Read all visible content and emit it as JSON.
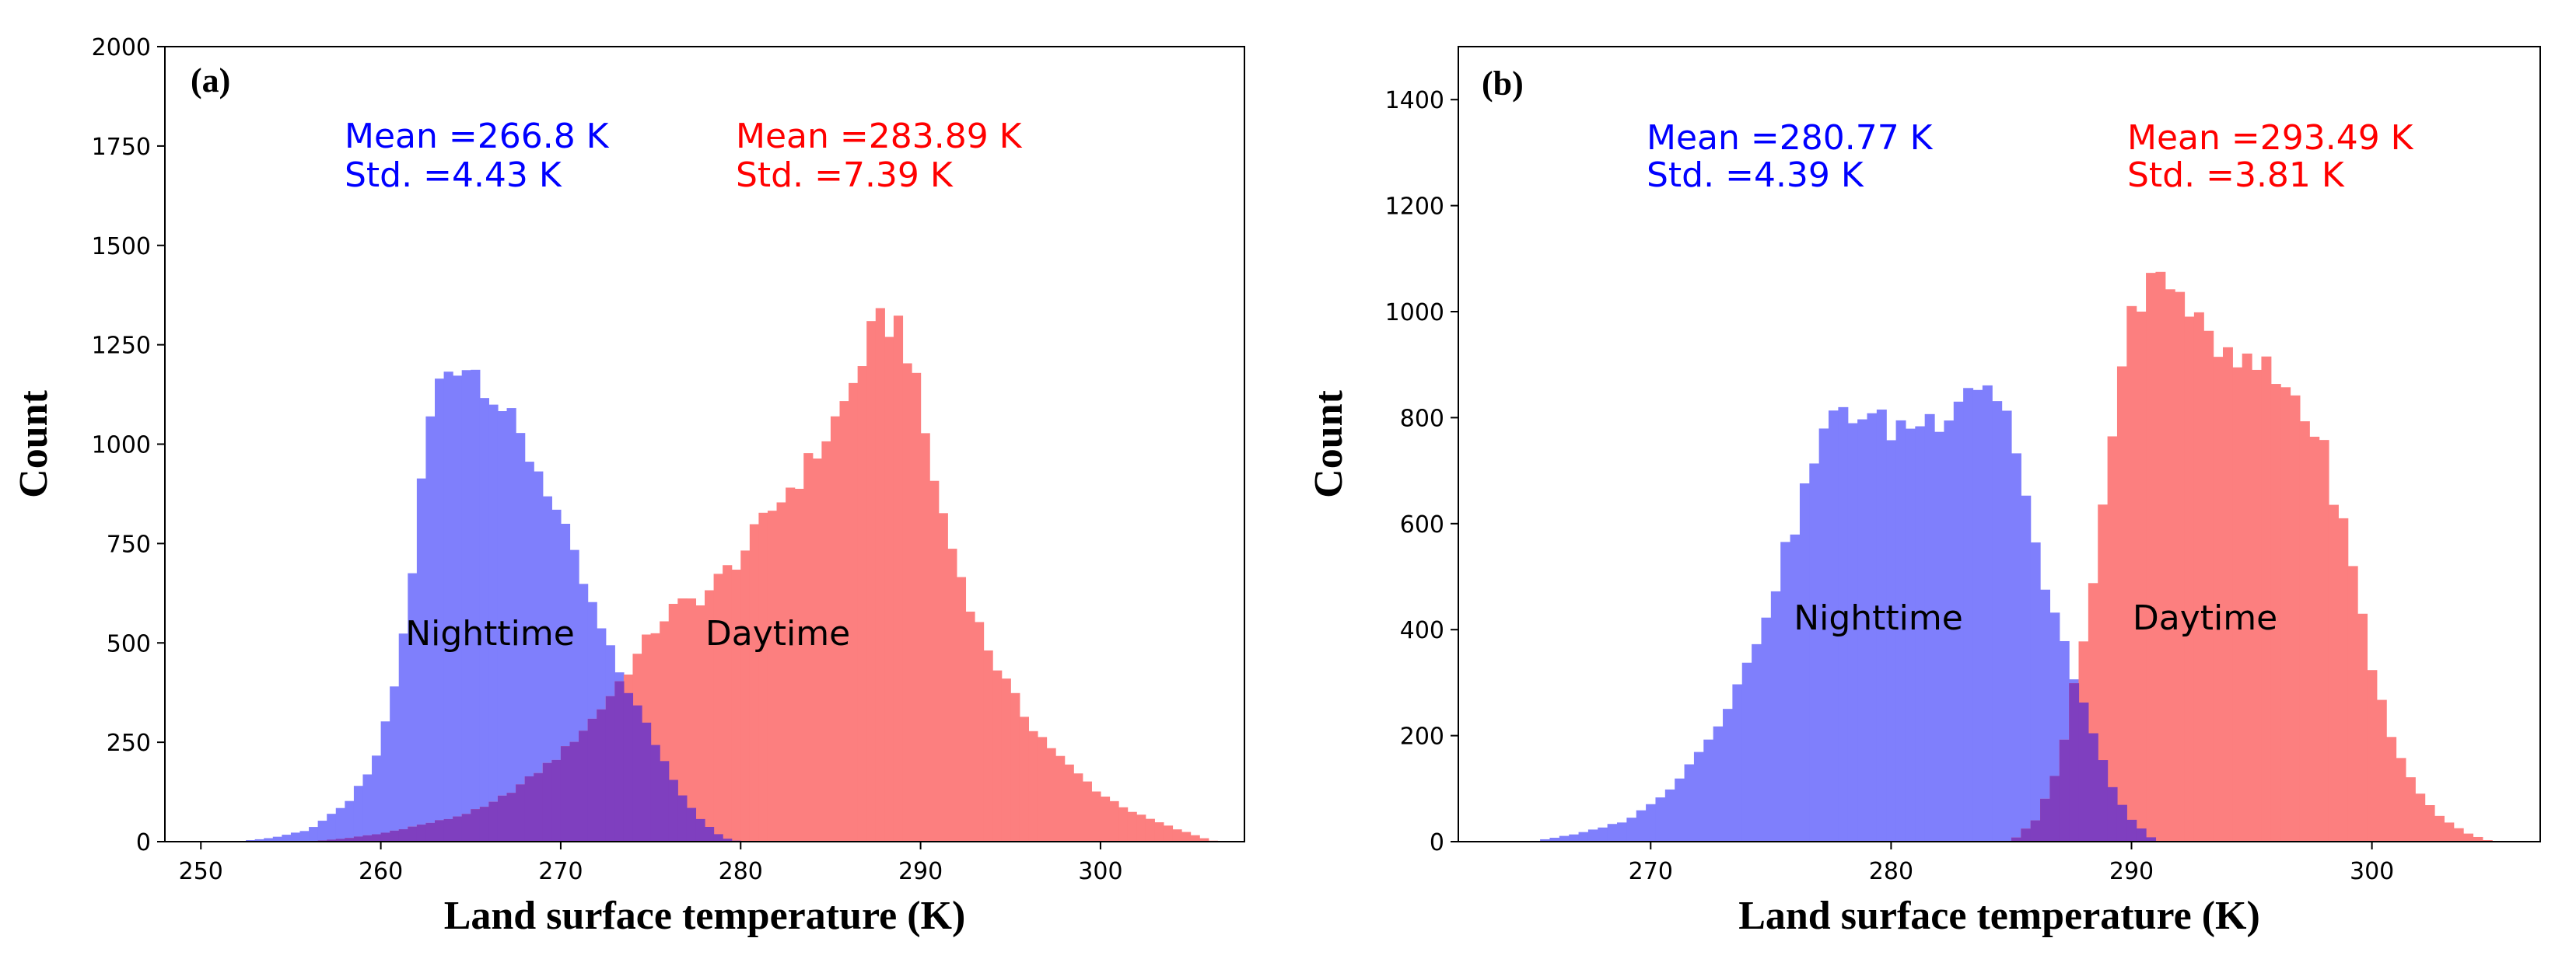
{
  "colors": {
    "nighttime": "#7f7ffc",
    "daytime": "#fc7f7f",
    "overlap": "#7f3fbf",
    "night_text": "#0000ff",
    "day_text": "#ff0000"
  },
  "chart_data": [
    {
      "type": "histogram",
      "panel_label": "(a)",
      "xlabel": "Land surface temperature (K)",
      "ylabel": "Count",
      "xlim": [
        248,
        308
      ],
      "ylim": [
        0,
        2000
      ],
      "xticks": [
        250,
        260,
        270,
        280,
        290,
        300
      ],
      "xtick_labels": [
        "250",
        "260",
        "270",
        "280",
        "290",
        "300"
      ],
      "yticks": [
        0,
        250,
        500,
        750,
        1000,
        1250,
        1500,
        1750,
        2000
      ],
      "ytick_labels": [
        "0",
        "250",
        "500",
        "750",
        "1000",
        "1250",
        "1500",
        "1750",
        "2000"
      ],
      "bin_width": 0.5,
      "series": [
        {
          "name": "Nighttime",
          "stats": {
            "mean": "Mean =266.8 K",
            "std": "Std. =4.43 K"
          },
          "profile": [
            [
              252,
              0
            ],
            [
              254,
              10
            ],
            [
              256,
              30
            ],
            [
              258,
              90
            ],
            [
              259.5,
              180
            ],
            [
              260.5,
              330
            ],
            [
              261.5,
              580
            ],
            [
              262.5,
              1000
            ],
            [
              263,
              1130
            ],
            [
              264,
              1210
            ],
            [
              265,
              1200
            ],
            [
              266,
              1150
            ],
            [
              267,
              1070
            ],
            [
              268,
              990
            ],
            [
              269,
              920
            ],
            [
              270,
              800
            ],
            [
              271,
              680
            ],
            [
              272,
              560
            ],
            [
              273,
              450
            ],
            [
              274,
              360
            ],
            [
              275,
              270
            ],
            [
              276,
              180
            ],
            [
              277,
              100
            ],
            [
              278,
              45
            ],
            [
              279,
              10
            ],
            [
              280,
              0
            ]
          ]
        },
        {
          "name": "Daytime",
          "stats": {
            "mean": "Mean =283.89 K",
            "std": "Std. =7.39 K"
          },
          "profile": [
            [
              256,
              0
            ],
            [
              258,
              8
            ],
            [
              260,
              20
            ],
            [
              262,
              40
            ],
            [
              264,
              60
            ],
            [
              266,
              90
            ],
            [
              268,
              150
            ],
            [
              270,
              220
            ],
            [
              272,
              320
            ],
            [
              274,
              450
            ],
            [
              275,
              520
            ],
            [
              276,
              580
            ],
            [
              278,
              620
            ],
            [
              280,
              720
            ],
            [
              282,
              850
            ],
            [
              284,
              960
            ],
            [
              286,
              1120
            ],
            [
              287,
              1250
            ],
            [
              288,
              1310
            ],
            [
              289,
              1300
            ],
            [
              290,
              1080
            ],
            [
              291,
              860
            ],
            [
              292,
              700
            ],
            [
              293,
              570
            ],
            [
              294,
              460
            ],
            [
              295,
              380
            ],
            [
              296,
              300
            ],
            [
              298,
              200
            ],
            [
              300,
              120
            ],
            [
              302,
              70
            ],
            [
              304,
              35
            ],
            [
              306,
              5
            ],
            [
              306.5,
              0
            ]
          ]
        }
      ],
      "annotations": [
        "Nighttime",
        "Daytime"
      ]
    },
    {
      "type": "histogram",
      "panel_label": "(b)",
      "xlabel": "Land surface temperature (K)",
      "ylabel": "Count",
      "xlim": [
        262,
        307
      ],
      "ylim": [
        0,
        1500
      ],
      "xticks": [
        270,
        280,
        290,
        300
      ],
      "xtick_labels": [
        "270",
        "280",
        "290",
        "300"
      ],
      "yticks": [
        0,
        200,
        400,
        600,
        800,
        1000,
        1200,
        1400
      ],
      "ytick_labels": [
        "0",
        "200",
        "400",
        "600",
        "800",
        "1000",
        "1200",
        "1400"
      ],
      "bin_width": 0.4,
      "series": [
        {
          "name": "Nighttime",
          "stats": {
            "mean": "Mean =280.77 K",
            "std": "Std. =4.39 K"
          },
          "profile": [
            [
              265,
              0
            ],
            [
              267,
              15
            ],
            [
              269,
              40
            ],
            [
              270,
              70
            ],
            [
              271,
              110
            ],
            [
              272,
              170
            ],
            [
              273,
              240
            ],
            [
              274,
              330
            ],
            [
              275,
              460
            ],
            [
              276,
              600
            ],
            [
              277,
              750
            ],
            [
              278,
              820
            ],
            [
              279,
              800
            ],
            [
              280,
              780
            ],
            [
              281,
              790
            ],
            [
              282,
              800
            ],
            [
              283,
              860
            ],
            [
              284,
              870
            ],
            [
              285,
              790
            ],
            [
              286,
              560
            ],
            [
              286.5,
              450
            ],
            [
              287,
              400
            ],
            [
              288,
              260
            ],
            [
              289,
              120
            ],
            [
              290,
              40
            ],
            [
              291,
              0
            ]
          ]
        },
        {
          "name": "Daytime",
          "stats": {
            "mean": "Mean =293.49 K",
            "std": "Std. =3.81 K"
          },
          "profile": [
            [
              285,
              0
            ],
            [
              286,
              40
            ],
            [
              287,
              150
            ],
            [
              288,
              380
            ],
            [
              289,
              700
            ],
            [
              290,
              1000
            ],
            [
              291,
              1100
            ],
            [
              292,
              1040
            ],
            [
              293,
              950
            ],
            [
              294,
              900
            ],
            [
              295,
              900
            ],
            [
              296,
              870
            ],
            [
              297,
              830
            ],
            [
              298,
              730
            ],
            [
              299,
              560
            ],
            [
              300,
              330
            ],
            [
              301,
              170
            ],
            [
              302,
              90
            ],
            [
              303,
              40
            ],
            [
              304,
              15
            ],
            [
              305,
              0
            ]
          ]
        }
      ],
      "annotations": [
        "Nighttime",
        "Daytime"
      ]
    }
  ]
}
